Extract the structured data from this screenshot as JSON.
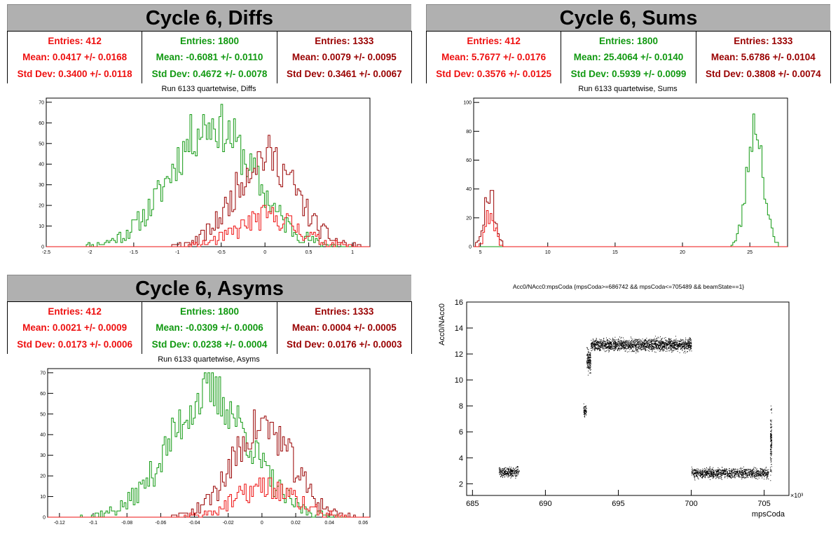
{
  "colors": {
    "red": "#ee1010",
    "green": "#119911",
    "darkred": "#990000"
  },
  "panels": {
    "diffs": {
      "title": "Cycle 6, Diffs",
      "subtitle": "Run 6133 quartetwise, Diffs",
      "stats": [
        {
          "entries": "Entries: 412",
          "mean": "Mean: 0.0417 +/- 0.0168",
          "std": "Std Dev: 0.3400 +/- 0.0118",
          "color": "#ee1010"
        },
        {
          "entries": "Entries: 1800",
          "mean": "Mean: -0.6081 +/- 0.0110",
          "std": "Std Dev: 0.4672 +/- 0.0078",
          "color": "#119911"
        },
        {
          "entries": "Entries: 1333",
          "mean": "Mean: 0.0079 +/- 0.0095",
          "std": "Std Dev: 0.3461 +/- 0.0067",
          "color": "#990000"
        }
      ]
    },
    "sums": {
      "title": "Cycle 6, Sums",
      "subtitle": "Run 6133 quartetwise, Sums",
      "stats": [
        {
          "entries": "Entries: 412",
          "mean": "Mean: 5.7677 +/- 0.0176",
          "std": "Std Dev: 0.3576 +/- 0.0125",
          "color": "#ee1010"
        },
        {
          "entries": "Entries: 1800",
          "mean": "Mean: 25.4064 +/- 0.0140",
          "std": "Std Dev: 0.5939 +/- 0.0099",
          "color": "#119911"
        },
        {
          "entries": "Entries: 1333",
          "mean": "Mean: 5.6786 +/- 0.0104",
          "std": "Std Dev: 0.3808 +/- 0.0074",
          "color": "#990000"
        }
      ]
    },
    "asyms": {
      "title": "Cycle 6, Asyms",
      "subtitle": "Run 6133 quartetwise, Asyms",
      "stats": [
        {
          "entries": "Entries: 412",
          "mean": "Mean: 0.0021 +/- 0.0009",
          "std": "Std Dev: 0.0173 +/- 0.0006",
          "color": "#ee1010"
        },
        {
          "entries": "Entries: 1800",
          "mean": "Mean: -0.0309 +/- 0.0006",
          "std": "Std Dev: 0.0238 +/- 0.0004",
          "color": "#119911"
        },
        {
          "entries": "Entries: 1333",
          "mean": "Mean: 0.0004 +/- 0.0005",
          "std": "Std Dev: 0.0176 +/- 0.0003",
          "color": "#990000"
        }
      ]
    },
    "scatter": {
      "title": "Acc0/NAcc0:mpsCoda {mpsCoda>=686742 && mpsCoda<=705489 && beamState==1}"
    }
  },
  "chart_data": [
    {
      "type": "line",
      "id": "diffs",
      "title": "Run 6133 quartetwise, Diffs",
      "xlim": [
        -2.5,
        1.2
      ],
      "ylim": [
        0,
        72
      ],
      "xticks": [
        -2.5,
        -2,
        -1.5,
        -1,
        -0.5,
        0,
        0.5,
        1
      ],
      "yticks": [
        10,
        20,
        30,
        40,
        50,
        60,
        70
      ],
      "series": [
        {
          "color": "#119911",
          "mean": -0.6081,
          "std": 0.4672,
          "entries": 1800,
          "peak": 70
        },
        {
          "color": "#990000",
          "mean": 0.0079,
          "std": 0.3461,
          "entries": 1333,
          "peak": 52
        },
        {
          "color": "#ee1010",
          "mean": 0.0417,
          "std": 0.34,
          "entries": 412,
          "peak": 17
        }
      ]
    },
    {
      "type": "line",
      "id": "sums",
      "title": "Run 6133 quartetwise, Sums",
      "xlim": [
        4.5,
        27.8
      ],
      "ylim": [
        0,
        103
      ],
      "xticks": [
        5,
        10,
        15,
        20,
        25
      ],
      "yticks": [
        20,
        40,
        60,
        80,
        100
      ],
      "series": [
        {
          "color": "#119911",
          "mean": 25.4064,
          "std": 0.5939,
          "entries": 1800,
          "peak": 100
        },
        {
          "color": "#990000",
          "mean": 5.6786,
          "std": 0.3808,
          "entries": 1333,
          "peak": 45
        },
        {
          "color": "#ee1010",
          "mean": 5.7677,
          "std": 0.3576,
          "entries": 412,
          "peak": 28
        }
      ]
    },
    {
      "type": "line",
      "id": "asyms",
      "title": "Run 6133 quartetwise, Asyms",
      "xlim": [
        -0.127,
        0.064
      ],
      "ylim": [
        0,
        72
      ],
      "xticks": [
        -0.12,
        -0.1,
        -0.08,
        -0.06,
        -0.04,
        -0.02,
        0,
        0.02,
        0.04,
        0.06
      ],
      "yticks": [
        10,
        20,
        30,
        40,
        50,
        60,
        70
      ],
      "series": [
        {
          "color": "#119911",
          "mean": -0.0309,
          "std": 0.0238,
          "entries": 1800,
          "peak": 70
        },
        {
          "color": "#990000",
          "mean": 0.0004,
          "std": 0.0176,
          "entries": 1333,
          "peak": 52
        },
        {
          "color": "#ee1010",
          "mean": 0.0021,
          "std": 0.0173,
          "entries": 412,
          "peak": 17
        }
      ]
    },
    {
      "type": "scatter",
      "id": "scatter",
      "title": "Acc0/NAcc0:mpsCoda {mpsCoda>=686742 && mpsCoda<=705489 && beamState==1}",
      "xlabel": "mpsCoda",
      "ylabel": "Acc0/NAcc0",
      "xscale_label": "×10³",
      "xlim": [
        684.6,
        706.7
      ],
      "ylim": [
        1.1,
        16
      ],
      "xticks": [
        685,
        690,
        695,
        700,
        705
      ],
      "yticks": [
        2,
        4,
        6,
        8,
        10,
        12,
        14,
        16
      ],
      "clusters": [
        {
          "x": [
            686.8,
            688.2
          ],
          "y_center": 2.9,
          "y_spread": 0.35
        },
        {
          "x": [
            692.6,
            692.8
          ],
          "y_center": 7.6,
          "y_spread": 0.4
        },
        {
          "x": [
            692.8,
            693.1
          ],
          "y_center": 11.5,
          "y_spread": 0.8
        },
        {
          "x": [
            693.1,
            700.0
          ],
          "y_center": 12.7,
          "y_spread": 0.45
        },
        {
          "x": [
            700.0,
            705.3
          ],
          "y_center": 2.8,
          "y_spread": 0.35
        },
        {
          "x": [
            705.4,
            705.5
          ],
          "y_center": 5.2,
          "y_spread": 2.2
        }
      ]
    }
  ]
}
